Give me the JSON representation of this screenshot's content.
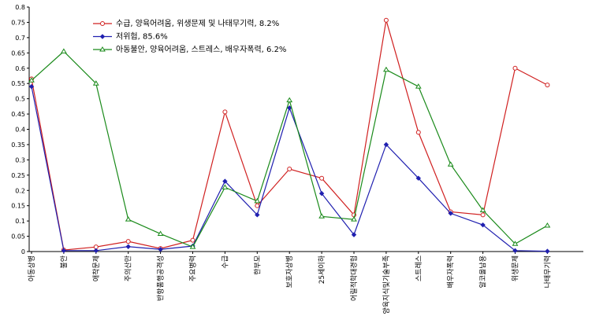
{
  "chart_data": {
    "type": "line",
    "categories": [
      "아동상병",
      "불안",
      "애착문제",
      "주의산만",
      "반항품행공격성",
      "주요병력",
      "수급",
      "한부모",
      "보호자상병",
      "25세이하",
      "어릴적학대경험",
      "양육지식및기술부족",
      "스트레스",
      "배우자폭력",
      "알코올남용",
      "위생문제",
      "나태무기력"
    ],
    "series": [
      {
        "name": "수급, 양육어려움, 위생문제 및 나태무기력, 8.2%",
        "color": "#d02020",
        "marker": "circle",
        "values": [
          0.565,
          0.005,
          0.015,
          0.033,
          0.01,
          0.037,
          0.457,
          0.15,
          0.27,
          0.24,
          0.12,
          0.757,
          0.39,
          0.13,
          0.12,
          0.6,
          0.545
        ]
      },
      {
        "name": "저위험, 85.6%",
        "color": "#2020b0",
        "marker": "diamond",
        "values": [
          0.54,
          0.003,
          0.003,
          0.016,
          0.007,
          0.018,
          0.23,
          0.12,
          0.47,
          0.19,
          0.055,
          0.35,
          0.24,
          0.125,
          0.087,
          0.003,
          0.001
        ]
      },
      {
        "name": "아동불안, 양육어려움, 스트레스, 배우자폭력, 6.2%",
        "color": "#1a8a1a",
        "marker": "triangle",
        "values": [
          0.56,
          0.655,
          0.55,
          0.105,
          0.058,
          0.015,
          0.21,
          0.165,
          0.495,
          0.115,
          0.105,
          0.595,
          0.54,
          0.285,
          0.135,
          0.025,
          0.085
        ]
      }
    ],
    "ylim": [
      0,
      0.8
    ],
    "yticks": [
      0,
      0.05,
      0.1,
      0.15,
      0.2,
      0.25,
      0.3,
      0.35,
      0.4,
      0.45,
      0.5,
      0.55,
      0.6,
      0.65,
      0.7,
      0.75,
      0.8
    ],
    "legend": "top-left"
  }
}
